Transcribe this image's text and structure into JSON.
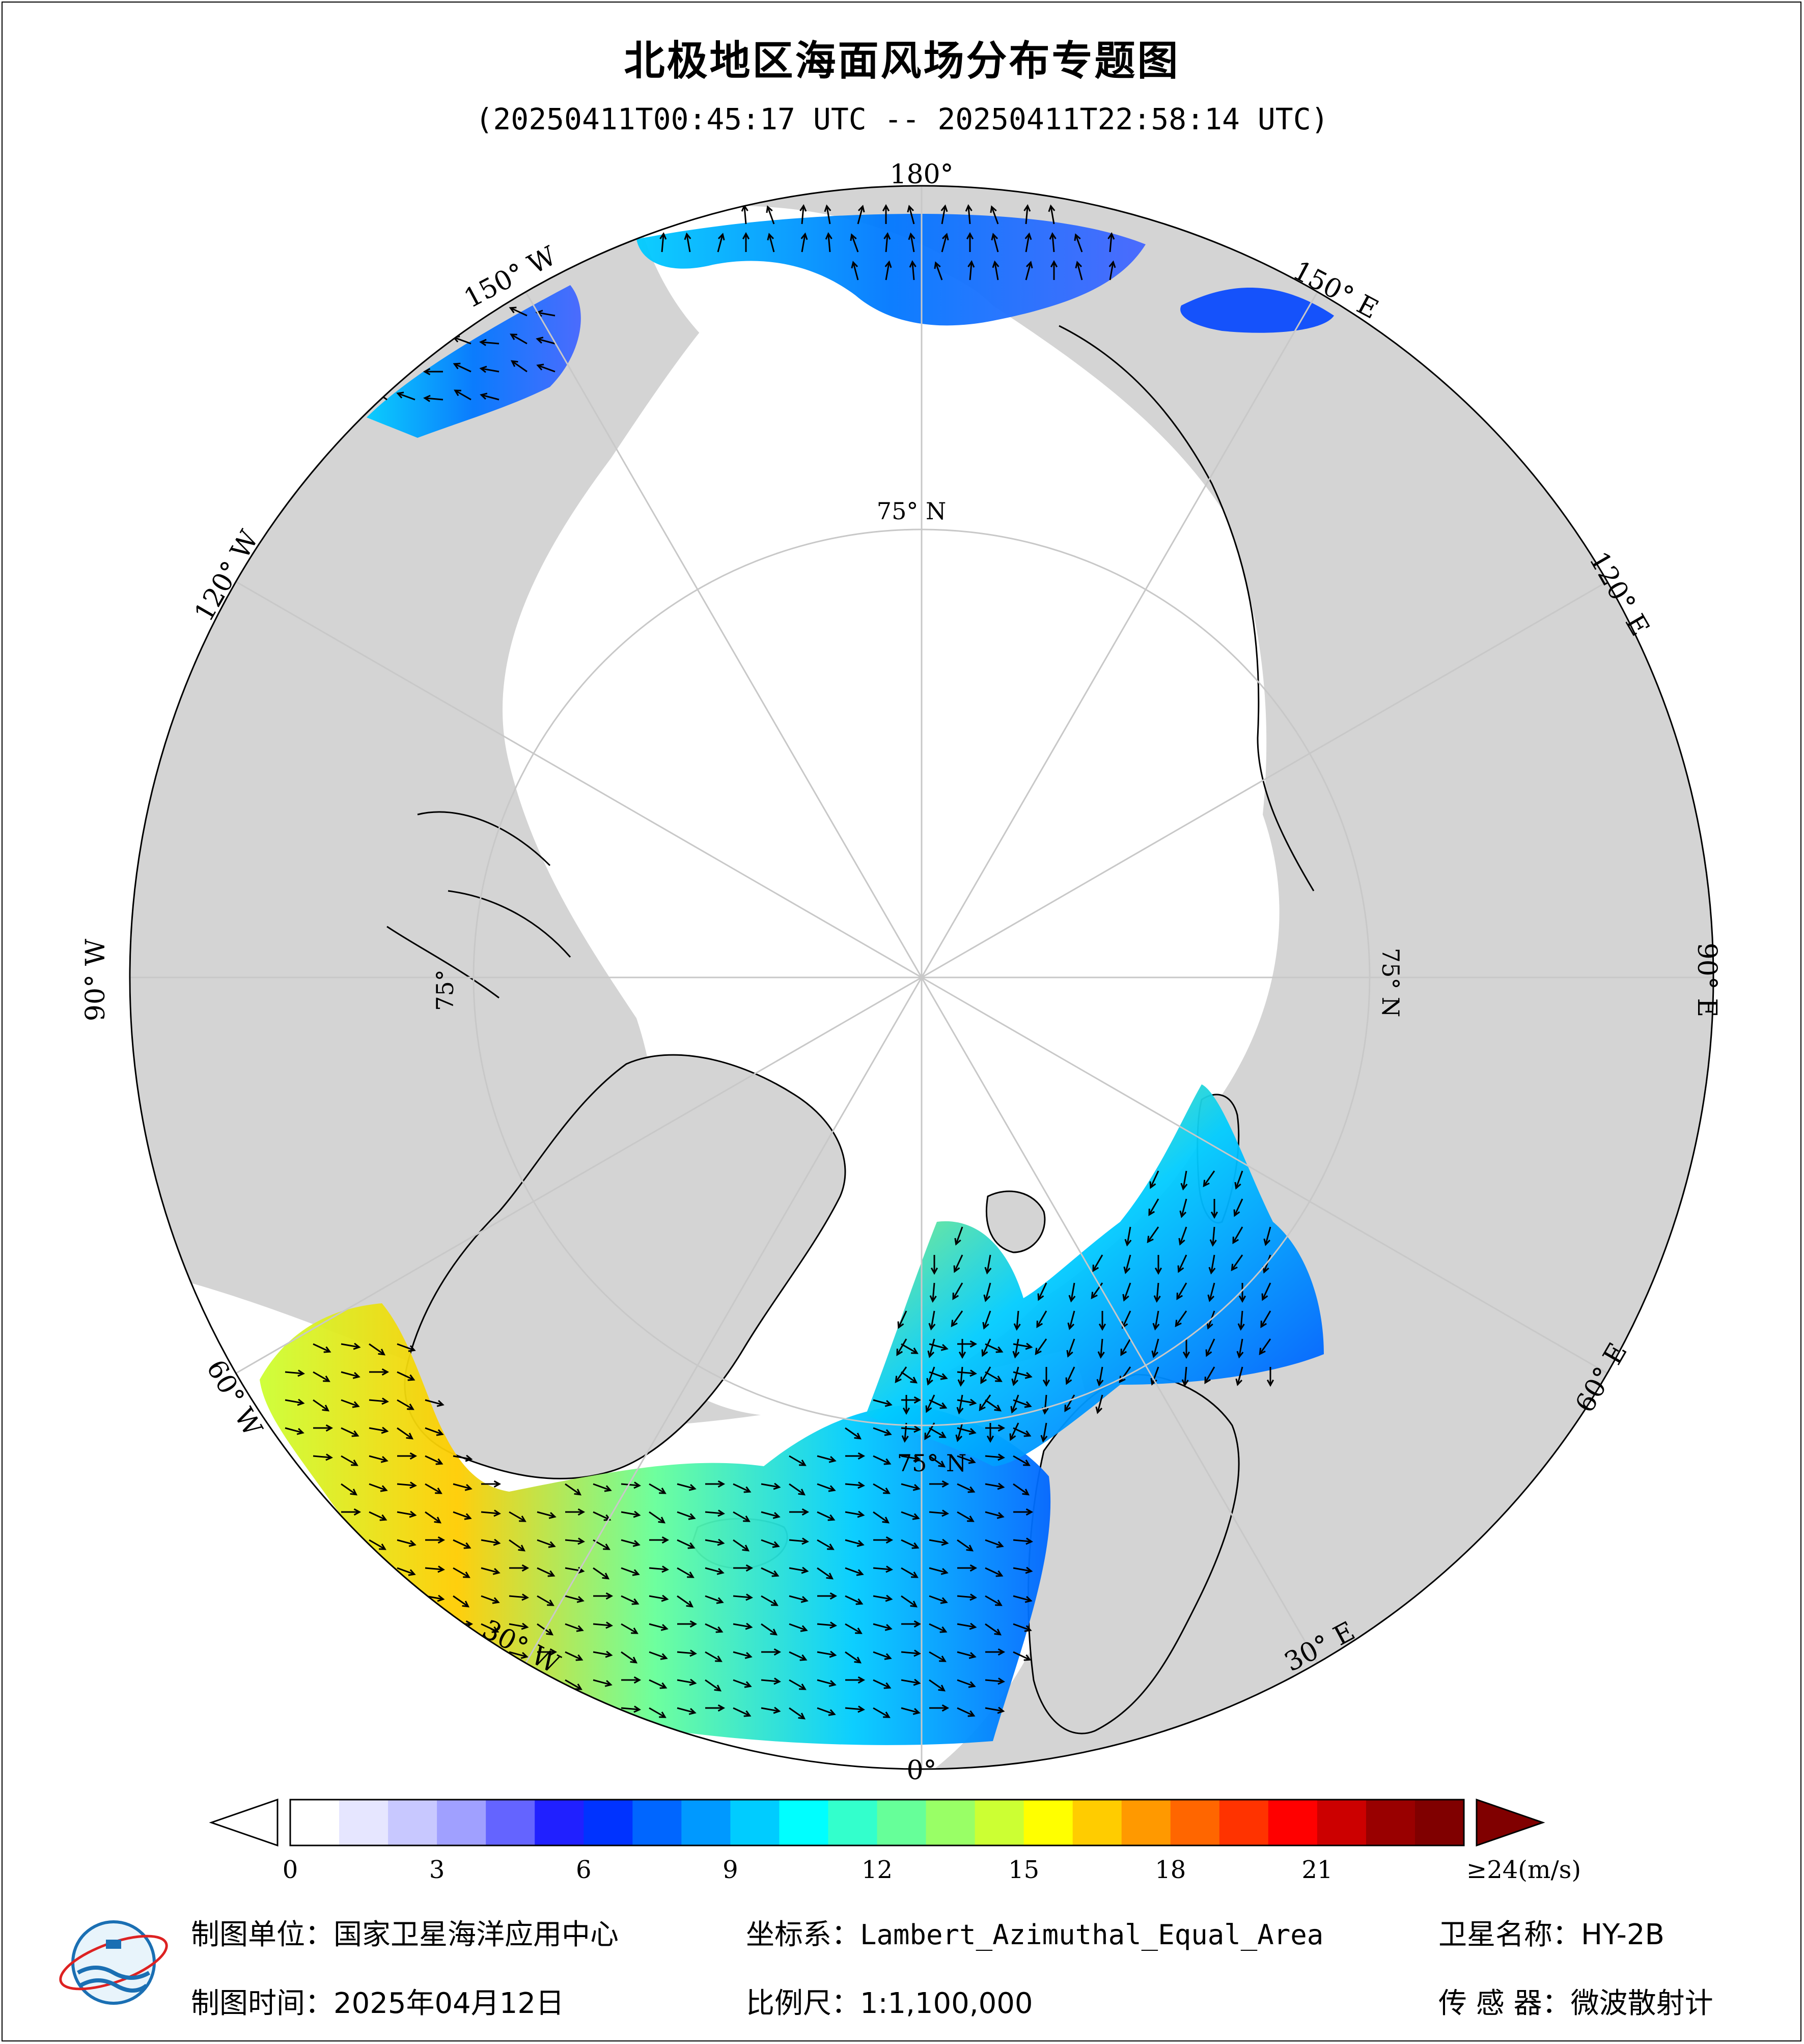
{
  "title": "北极地区海面风场分布专题图",
  "subtitle": "(20250411T00:45:17 UTC -- 20250411T22:58:14 UTC)",
  "map": {
    "longitude_labels": {
      "lon_180": "180°",
      "lon_0": "0°",
      "lon_90W": "90° W",
      "lon_90E": "90° E",
      "lon_150W": "150° W",
      "lon_150E": "150° E",
      "lon_120W": "120° W",
      "lon_120E": "120° E",
      "lon_60W": "60° W",
      "lon_60E": "60° E",
      "lon_30W": "30° W",
      "lon_30E": "30° E"
    },
    "latitude_labels": {
      "top": "75° N",
      "right": "75° N",
      "left": "75°",
      "bottom": "75° N"
    },
    "colors": {
      "land": "#d4d4d4",
      "ocean": "#ffffff",
      "arrow": "#000000"
    }
  },
  "colorbar": {
    "unit_label": "≥24(m/s)",
    "ticks": [
      "0",
      "3",
      "6",
      "9",
      "12",
      "15",
      "18",
      "21"
    ],
    "min": 0,
    "max": 24,
    "colors": [
      "#ffffff",
      "#e6e6ff",
      "#c8c8ff",
      "#a0a0ff",
      "#6464ff",
      "#2020ff",
      "#0033ff",
      "#0066ff",
      "#0099ff",
      "#00ccff",
      "#00ffff",
      "#33ffcc",
      "#66ff99",
      "#99ff66",
      "#ccff33",
      "#ffff00",
      "#ffcc00",
      "#ff9900",
      "#ff6600",
      "#ff3300",
      "#ff0000",
      "#cc0000",
      "#990000",
      "#800000"
    ]
  },
  "footer": {
    "unit_key": "制图单位：",
    "unit_val": "国家卫星海洋应用中心",
    "coord_key": "坐标系：",
    "coord_val": "Lambert_Azimuthal_Equal_Area",
    "sat_key": "卫星名称：",
    "sat_val": "HY-2B",
    "date_key": "制图时间：",
    "date_val": "2025年04月12日",
    "scale_key": "比例尺：",
    "scale_val": "1:1,100,000",
    "sensor_key": "传 感 器：",
    "sensor_val": "微波散射计"
  }
}
